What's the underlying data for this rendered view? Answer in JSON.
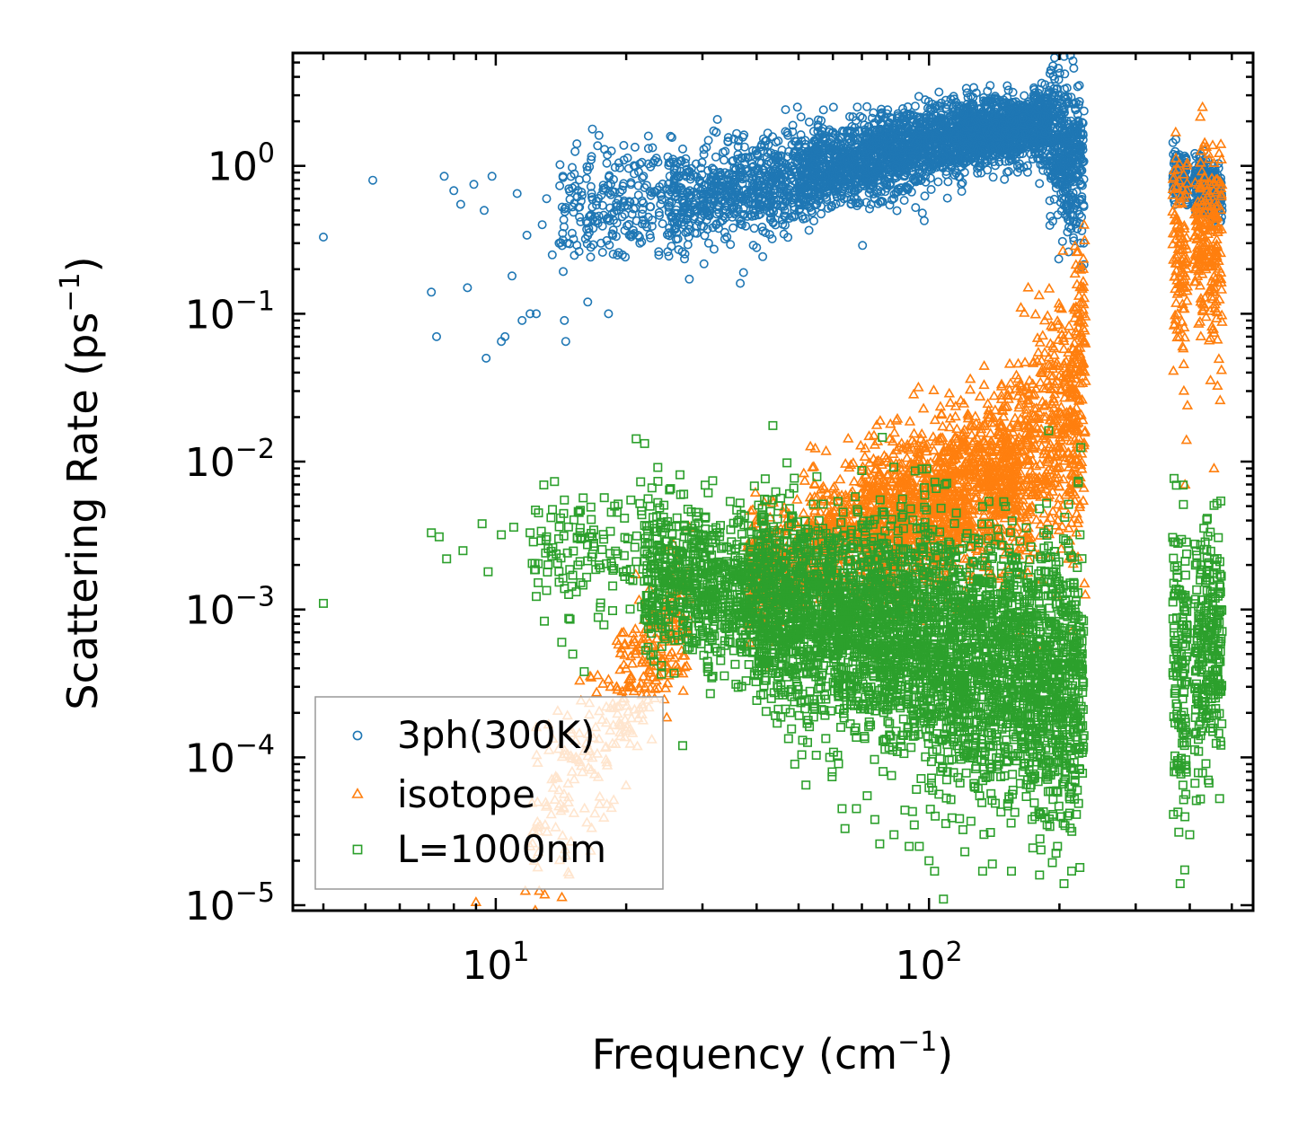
{
  "chart_data": {
    "type": "scatter",
    "title": "",
    "xlabel": {
      "base": "Frequency (cm",
      "sup": "−1",
      "close": ")"
    },
    "ylabel": {
      "base": "Scattering Rate (ps",
      "sup": "−1",
      "close": ")"
    },
    "xscale": "log",
    "yscale": "log",
    "xlim": [
      3.4,
      560
    ],
    "ylim": [
      9.2e-06,
      5.8
    ],
    "xticks": [
      {
        "value": 10,
        "base": "10",
        "exp": "1"
      },
      {
        "value": 100,
        "base": "10",
        "exp": "2"
      }
    ],
    "yticks": [
      {
        "value": 1e-05,
        "base": "10",
        "exp": "−5"
      },
      {
        "value": 0.0001,
        "base": "10",
        "exp": "−4"
      },
      {
        "value": 0.001,
        "base": "10",
        "exp": "−3"
      },
      {
        "value": 0.01,
        "base": "10",
        "exp": "−2"
      },
      {
        "value": 0.1,
        "base": "10",
        "exp": "−1"
      },
      {
        "value": 1,
        "base": "10",
        "exp": "0"
      }
    ],
    "legend": {
      "placement": "lower-left",
      "entries": [
        "3ph(300K)",
        "isotope",
        "L=1000nm"
      ]
    },
    "series": [
      {
        "name": "3ph(300K)",
        "marker": "circle",
        "color": "#1f77b4",
        "points": [
          [
            4.0,
            0.33
          ],
          [
            5.2,
            0.8
          ],
          [
            7.1,
            0.14
          ],
          [
            7.3,
            0.07
          ],
          [
            7.6,
            0.85
          ],
          [
            8.0,
            0.68
          ],
          [
            8.3,
            0.55
          ],
          [
            8.6,
            0.15
          ],
          [
            8.9,
            0.75
          ],
          [
            9.4,
            0.5
          ],
          [
            9.5,
            0.05
          ],
          [
            9.8,
            0.85
          ],
          [
            10.3,
            0.065
          ],
          [
            10.5,
            0.07
          ],
          [
            10.9,
            0.18
          ],
          [
            11.2,
            0.65
          ],
          [
            11.5,
            0.09
          ],
          [
            11.8,
            0.34
          ],
          [
            12.0,
            0.1
          ],
          [
            12.4,
            0.1
          ],
          [
            12.8,
            0.4
          ],
          [
            13.1,
            0.6
          ],
          [
            13.5,
            0.25
          ],
          [
            14.0,
            0.3
          ],
          [
            14.4,
            0.09
          ],
          [
            14.5,
            0.065
          ],
          [
            15.0,
            0.35
          ],
          [
            15.6,
            0.45
          ],
          [
            16.3,
            0.12
          ],
          [
            16.6,
            1.1
          ],
          [
            17.5,
            0.3
          ],
          [
            18.2,
            0.1
          ],
          [
            19.0,
            0.5
          ],
          [
            19.6,
            0.25
          ],
          [
            20.5,
            0.75
          ],
          [
            21.5,
            0.3
          ],
          [
            22.5,
            0.45
          ],
          [
            24.0,
            0.55
          ],
          [
            25.5,
            0.35
          ],
          [
            27.0,
            1.3
          ],
          [
            29.0,
            0.5
          ],
          [
            31.0,
            0.3
          ],
          [
            34.0,
            0.5
          ],
          [
            37.0,
            0.4
          ],
          [
            40.0,
            0.28
          ],
          [
            45.0,
            0.48
          ],
          [
            50.0,
            1.4
          ],
          [
            55.0,
            0.7
          ],
          [
            60.0,
            0.95
          ],
          [
            65.0,
            1.25
          ],
          [
            70.0,
            1.05
          ],
          [
            75.0,
            0.6
          ],
          [
            80.0,
            1.8
          ],
          [
            90.0,
            1.5
          ],
          [
            98.0,
            2.8
          ],
          [
            105.0,
            0.78
          ],
          [
            115.0,
            1.5
          ],
          [
            125.0,
            2.0
          ],
          [
            140.0,
            1.8
          ],
          [
            155.0,
            2.6
          ],
          [
            170.0,
            2.4
          ],
          [
            178.0,
            2.9
          ],
          [
            190.0,
            1.0
          ],
          [
            205.0,
            2.4
          ],
          [
            218.0,
            1.7
          ],
          [
            225.0,
            0.45
          ],
          [
            370.0,
            1.25
          ],
          [
            395.0,
            0.8
          ],
          [
            430.0,
            0.9
          ],
          [
            465.0,
            0.6
          ]
        ],
        "bands": [
          {
            "x_range": [
              14.0,
              25.0
            ],
            "y_center": [
              0.5,
              0.62
            ],
            "spread": 0.2,
            "count": 220
          },
          {
            "x_range": [
              25.0,
              50.0
            ],
            "y_center": [
              0.55,
              0.85
            ],
            "spread": 0.16,
            "count": 650
          },
          {
            "x_range": [
              50.0,
              120.0
            ],
            "y_center": [
              0.85,
              1.6
            ],
            "spread": 0.14,
            "count": 1500
          },
          {
            "x_range": [
              120.0,
              190.0
            ],
            "y_center": [
              1.6,
              1.9
            ],
            "spread": 0.12,
            "count": 1000
          },
          {
            "x_range": [
              190.0,
              228.0
            ],
            "y_center": [
              1.6,
              0.9
            ],
            "spread": 0.25,
            "count": 420
          },
          {
            "x_range": [
              365.0,
              395.0
            ],
            "y_center": [
              0.85,
              0.8
            ],
            "spread": 0.08,
            "count": 140
          },
          {
            "x_range": [
              410.0,
              475.0
            ],
            "y_center": [
              0.75,
              0.62
            ],
            "spread": 0.1,
            "count": 260
          }
        ]
      },
      {
        "name": "isotope",
        "marker": "triangle",
        "color": "#ff7f0e",
        "points": [
          [
            9.0,
            1.05e-05
          ],
          [
            11.7,
            1.25e-05
          ],
          [
            12.6,
            1.25e-05
          ],
          [
            12.5,
            1.8e-05
          ],
          [
            12.0,
            2.5e-05
          ],
          [
            13.0,
            3.5e-05
          ],
          [
            14.0,
            6e-05
          ],
          [
            15.0,
            8e-05
          ],
          [
            16.0,
            0.00011
          ],
          [
            17.0,
            0.00016
          ],
          [
            18.0,
            0.00022
          ],
          [
            19.0,
            0.0003
          ],
          [
            20.0,
            0.0004
          ],
          [
            21.0,
            0.0005
          ],
          [
            22.0,
            0.0007
          ],
          [
            24.0,
            0.0009
          ],
          [
            26.0,
            0.0013
          ],
          [
            28.0,
            0.0036
          ],
          [
            49.0,
            0.0028
          ],
          [
            54.0,
            0.0036
          ],
          [
            62.0,
            0.0058
          ],
          [
            66.0,
            0.0095
          ],
          [
            75.0,
            0.013
          ],
          [
            90.0,
            0.0095
          ],
          [
            112.0,
            0.025
          ],
          [
            123.0,
            0.021
          ],
          [
            134.0,
            0.033
          ],
          [
            147.0,
            0.028
          ],
          [
            163.0,
            0.11
          ],
          [
            178.0,
            0.00055
          ],
          [
            185.0,
            0.09
          ],
          [
            200.0,
            0.11
          ],
          [
            210.0,
            0.0022
          ],
          [
            228.0,
            0.4
          ],
          [
            375.0,
            0.1
          ],
          [
            385.0,
            0.06
          ],
          [
            395.0,
            0.024
          ],
          [
            393.0,
            0.014
          ],
          [
            390.0,
            0.007
          ],
          [
            428.0,
            2.5
          ],
          [
            455.0,
            0.009
          ],
          [
            470.0,
            0.026
          ],
          [
            445.0,
            0.4
          ],
          [
            460.0,
            0.25
          ]
        ],
        "bands": [
          {
            "x_range": [
              12.0,
              19.0
            ],
            "y_center": [
              3e-05,
              0.00018
            ],
            "spread": 0.3,
            "count": 120
          },
          {
            "x_range": [
              19.0,
              28.0
            ],
            "y_center": [
              0.00025,
              0.0009
            ],
            "spread": 0.28,
            "count": 200
          },
          {
            "x_range": [
              38.0,
              70.0
            ],
            "y_center": [
              0.0017,
              0.0038
            ],
            "spread": 0.22,
            "count": 500
          },
          {
            "x_range": [
              70.0,
              160.0
            ],
            "y_center": [
              0.0035,
              0.0085
            ],
            "spread": 0.28,
            "count": 1400
          },
          {
            "x_range": [
              160.0,
              210.0
            ],
            "y_center": [
              0.011,
              0.02
            ],
            "spread": 0.4,
            "count": 350
          },
          {
            "x_range": [
              210.0,
              230.0
            ],
            "y_center": [
              0.015,
              0.06
            ],
            "spread": 0.45,
            "count": 200
          },
          {
            "x_range": [
              365.0,
              395.0
            ],
            "y_center": [
              0.28,
              0.22
            ],
            "spread": 0.35,
            "count": 110
          },
          {
            "x_range": [
              410.0,
              475.0
            ],
            "y_center": [
              0.35,
              0.3
            ],
            "spread": 0.35,
            "count": 220
          }
        ]
      },
      {
        "name": "L=1000nm",
        "marker": "square",
        "color": "#2ca02c",
        "points": [
          [
            4.0,
            0.0011
          ],
          [
            7.1,
            0.0033
          ],
          [
            7.4,
            0.0031
          ],
          [
            7.7,
            0.0022
          ],
          [
            8.4,
            0.0025
          ],
          [
            9.3,
            0.0038
          ],
          [
            9.6,
            0.0018
          ],
          [
            10.3,
            0.0032
          ],
          [
            11.0,
            0.0036
          ],
          [
            12.0,
            0.0033
          ],
          [
            13.1,
            0.0031
          ],
          [
            14.4,
            0.0055
          ],
          [
            15.5,
            0.0046
          ],
          [
            16.7,
            0.0031
          ],
          [
            17.8,
            0.0057
          ],
          [
            18.8,
            0.005
          ],
          [
            20.5,
            0.0055
          ],
          [
            21.5,
            0.0052
          ],
          [
            14.2,
            0.0006
          ],
          [
            16.0,
            0.00038
          ],
          [
            27.0,
            0.00012
          ],
          [
            36.0,
            0.0047
          ],
          [
            37.5,
            0.0043
          ],
          [
            41.0,
            0.0042
          ],
          [
            49.0,
            9e-05
          ],
          [
            52.0,
            6.5e-05
          ],
          [
            59.0,
            0.0001
          ],
          [
            63.0,
            4.5e-05
          ],
          [
            64.0,
            3.3e-05
          ],
          [
            68.0,
            4.5e-05
          ],
          [
            72.0,
            5.5e-05
          ],
          [
            75.0,
            3.8e-05
          ],
          [
            77.0,
            2.6e-05
          ],
          [
            83.0,
            3e-05
          ],
          [
            88.0,
            4.4e-05
          ],
          [
            90.0,
            2.5e-05
          ],
          [
            95.0,
            2.5e-05
          ],
          [
            100.0,
            2e-05
          ],
          [
            103.0,
            1.7e-05
          ],
          [
            108.0,
            1.1e-05
          ],
          [
            113.0,
            3.9e-05
          ],
          [
            121.0,
            2.3e-05
          ],
          [
            125.0,
            3.7e-05
          ],
          [
            133.0,
            1.7e-05
          ],
          [
            140.0,
            1.9e-05
          ],
          [
            155.0,
            1.7e-05
          ],
          [
            172.0,
            6.5e-05
          ],
          [
            180.0,
            1.6e-05
          ],
          [
            193.0,
            4e-05
          ],
          [
            198.0,
            2.5e-05
          ],
          [
            205.0,
            1.4e-05
          ],
          [
            220.0,
            6e-05
          ],
          [
            223.0,
            1.8e-05
          ],
          [
            380.0,
            1.4e-05
          ],
          [
            400.0,
            3e-05
          ],
          [
            425.0,
            0.002
          ],
          [
            440.0,
            0.00033
          ],
          [
            448.0,
            0.00017
          ]
        ],
        "bands": [
          {
            "x_range": [
              12.0,
              22.0
            ],
            "y_center": [
              0.0024,
              0.0023
            ],
            "spread": 0.22,
            "count": 120
          },
          {
            "x_range": [
              22.0,
              40.0
            ],
            "y_center": [
              0.0018,
              0.0012
            ],
            "spread": 0.28,
            "count": 700
          },
          {
            "x_range": [
              40.0,
              90.0
            ],
            "y_center": [
              0.0011,
              0.00065
            ],
            "spread": 0.34,
            "count": 1700
          },
          {
            "x_range": [
              90.0,
              180.0
            ],
            "y_center": [
              0.00065,
              0.00032
            ],
            "spread": 0.42,
            "count": 1500
          },
          {
            "x_range": [
              180.0,
              228.0
            ],
            "y_center": [
              0.00035,
              0.00028
            ],
            "spread": 0.48,
            "count": 500
          },
          {
            "x_range": [
              365.0,
              395.0
            ],
            "y_center": [
              0.00045,
              0.0004
            ],
            "spread": 0.55,
            "count": 140
          },
          {
            "x_range": [
              410.0,
              475.0
            ],
            "y_center": [
              0.0006,
              0.00055
            ],
            "spread": 0.4,
            "count": 260
          }
        ]
      }
    ]
  }
}
